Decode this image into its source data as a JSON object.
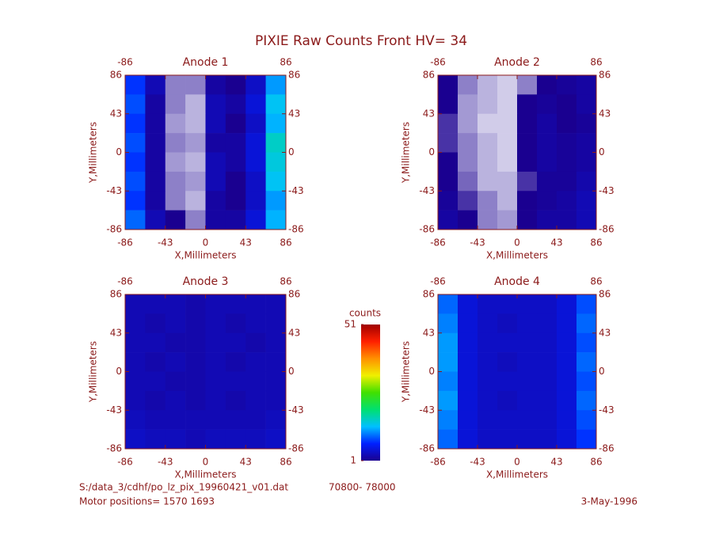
{
  "title": "PIXIE Raw Counts Front HV= 34",
  "colorbar": {
    "label": "counts",
    "zlim": [
      1,
      51
    ],
    "ticks": [
      1,
      51
    ],
    "colors": [
      "#1a0090",
      "#0020ff",
      "#00c0ff",
      "#00e070",
      "#40e000",
      "#f0f000",
      "#ff9000",
      "#ff2000",
      "#a00000"
    ]
  },
  "footer": {
    "file": "S:/data_3/cdhf/po_lz_pix_19960421_v01.dat",
    "range": "70800- 78000",
    "motor": "Motor positions= 1570 1693",
    "date": "3-May-1996"
  },
  "chart_data": [
    {
      "type": "heatmap",
      "title": "Anode 1",
      "x_label": "X,Millimeters",
      "y_label": "Y,Millimeters",
      "xlim": [
        -86,
        86
      ],
      "ylim": [
        -86,
        86
      ],
      "xticks": [
        -86,
        -43,
        0,
        43,
        86
      ],
      "yticks": [
        -86,
        -43,
        0,
        43,
        86
      ],
      "z": [
        [
          8,
          3,
          0.5,
          0.5,
          2,
          1,
          4,
          12
        ],
        [
          9,
          2,
          0.5,
          0.3,
          3,
          2,
          5,
          14
        ],
        [
          8,
          2,
          0.4,
          0.3,
          3,
          1,
          4,
          13
        ],
        [
          9,
          2,
          0.5,
          0.4,
          2,
          2,
          5,
          16
        ],
        [
          8,
          2,
          0.4,
          0.3,
          3,
          2,
          5,
          15
        ],
        [
          9,
          2,
          0.5,
          0.4,
          3,
          1,
          4,
          14
        ],
        [
          8,
          2,
          0.5,
          0.3,
          2,
          1,
          4,
          12
        ],
        [
          10,
          3,
          1,
          0.5,
          2,
          2,
          5,
          13
        ]
      ]
    },
    {
      "type": "heatmap",
      "title": "Anode 2",
      "x_label": "X,Millimeters",
      "y_label": "Y,Millimeters",
      "xlim": [
        -86,
        86
      ],
      "ylim": [
        -86,
        86
      ],
      "xticks": [
        -86,
        -43,
        0,
        43,
        86
      ],
      "yticks": [
        -86,
        -43,
        0,
        43,
        86
      ],
      "z": [
        [
          1,
          0.5,
          0.3,
          0.2,
          0.5,
          1,
          1.5,
          2
        ],
        [
          1,
          0.4,
          0.3,
          0.2,
          1,
          1.5,
          1,
          2
        ],
        [
          0.8,
          0.4,
          0.2,
          0.2,
          1,
          2,
          1,
          1.5
        ],
        [
          0.8,
          0.5,
          0.3,
          0.2,
          1,
          2,
          1.5,
          2
        ],
        [
          1,
          0.5,
          0.3,
          0.2,
          1,
          2,
          1.5,
          2
        ],
        [
          1,
          0.6,
          0.3,
          0.3,
          0.8,
          1.5,
          1.5,
          2.5
        ],
        [
          1.5,
          0.8,
          0.5,
          0.3,
          1,
          1.5,
          2,
          3
        ],
        [
          2,
          1,
          0.5,
          0.4,
          1,
          2,
          2,
          3
        ]
      ]
    },
    {
      "type": "heatmap",
      "title": "Anode 3",
      "x_label": "X,Millimeters",
      "y_label": "Y,Millimeters",
      "xlim": [
        -86,
        86
      ],
      "ylim": [
        -86,
        86
      ],
      "xticks": [
        -86,
        -43,
        0,
        43,
        86
      ],
      "yticks": [
        -86,
        -43,
        0,
        43,
        86
      ],
      "z": [
        [
          3,
          3,
          3,
          2.5,
          3,
          3,
          3,
          3
        ],
        [
          3,
          2.5,
          3,
          2.5,
          3,
          2.5,
          3,
          3
        ],
        [
          3,
          3,
          2.5,
          2.5,
          3,
          3,
          2.5,
          3
        ],
        [
          3,
          2.5,
          3,
          2.5,
          3,
          2.5,
          3,
          3
        ],
        [
          3,
          3,
          2.5,
          2.5,
          3,
          3,
          3,
          3
        ],
        [
          3,
          2.5,
          3,
          2.5,
          3,
          2.5,
          3,
          3
        ],
        [
          3.5,
          3,
          3,
          3,
          3,
          3,
          3,
          3.5
        ],
        [
          4,
          3.5,
          3.5,
          3,
          3.5,
          3.5,
          3.5,
          4
        ]
      ]
    },
    {
      "type": "heatmap",
      "title": "Anode 4",
      "x_label": "X,Millimeters",
      "y_label": "Y,Millimeters",
      "xlim": [
        -86,
        86
      ],
      "ylim": [
        -86,
        86
      ],
      "xticks": [
        -86,
        -43,
        0,
        43,
        86
      ],
      "yticks": [
        -86,
        -43,
        0,
        43,
        86
      ],
      "z": [
        [
          10,
          5,
          4,
          4,
          4,
          4,
          5,
          9
        ],
        [
          11,
          5,
          4,
          3.5,
          4,
          4,
          5,
          10
        ],
        [
          12,
          5,
          4,
          4,
          4,
          4,
          5,
          9
        ],
        [
          12,
          5,
          4,
          3.5,
          4,
          4,
          5,
          10
        ],
        [
          11,
          5,
          4,
          4,
          4,
          4,
          5,
          9
        ],
        [
          12,
          5,
          4,
          3.5,
          4,
          4,
          5,
          10
        ],
        [
          11,
          5,
          4,
          4,
          4,
          4,
          5,
          9
        ],
        [
          10,
          5,
          4,
          4,
          4,
          4,
          5,
          8
        ]
      ]
    }
  ]
}
